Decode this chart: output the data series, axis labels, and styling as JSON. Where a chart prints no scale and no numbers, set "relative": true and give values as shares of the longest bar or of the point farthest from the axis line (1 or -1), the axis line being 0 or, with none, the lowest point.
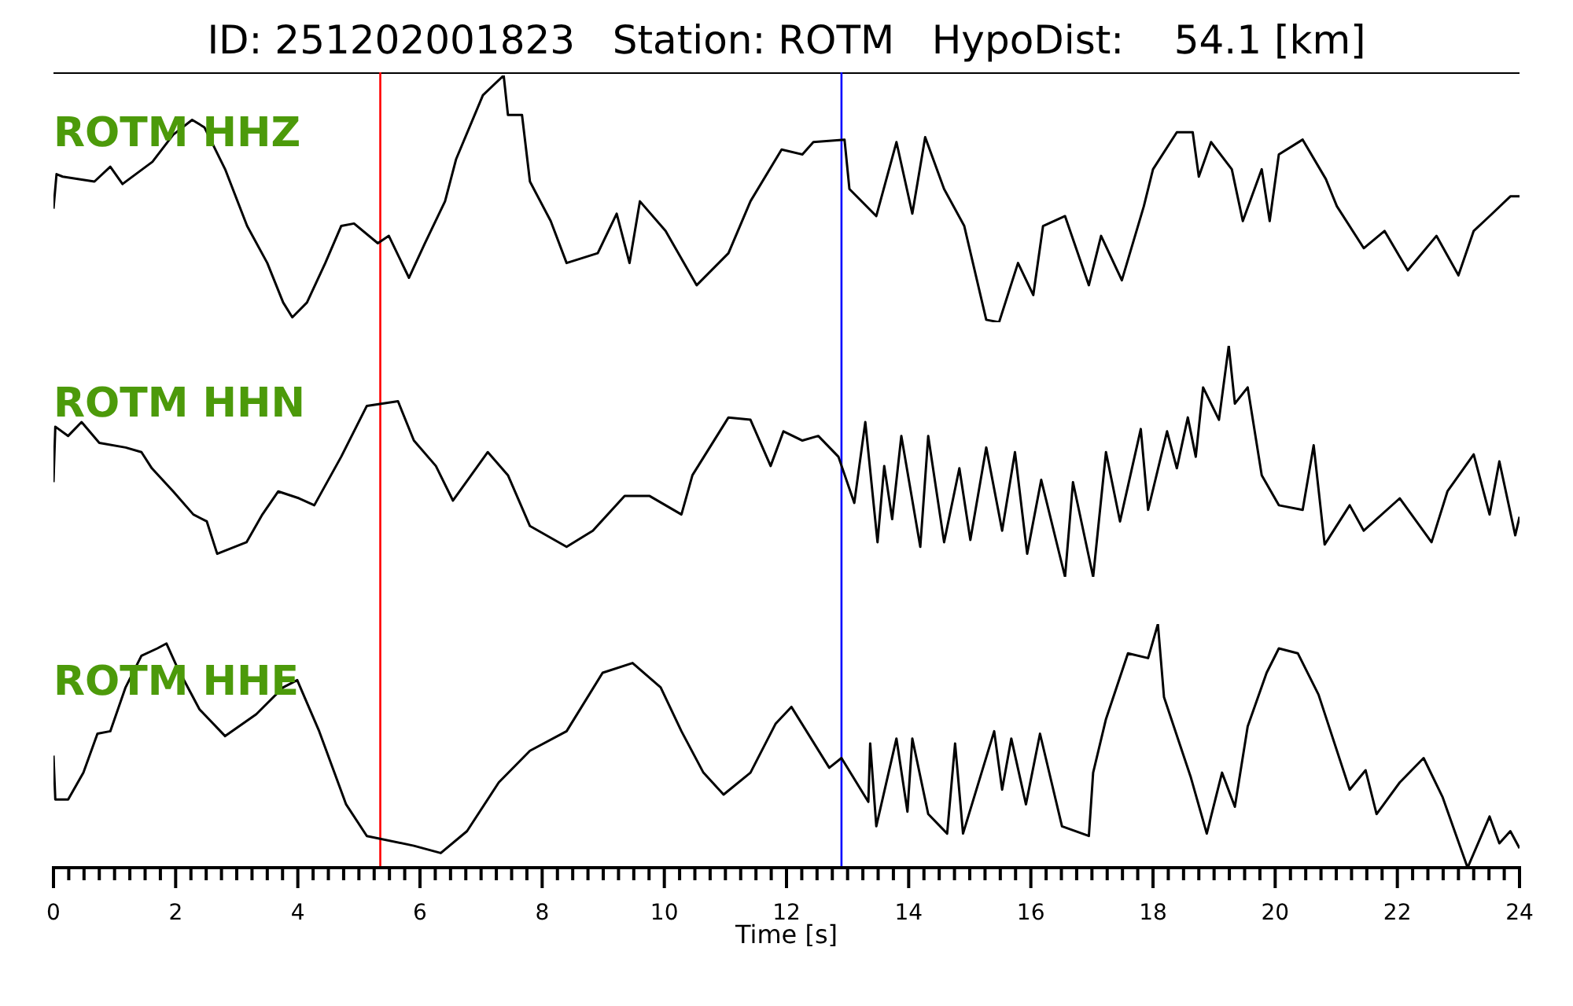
{
  "chart_data": [
    {
      "type": "line",
      "title": "ID: 251202001823   Station: ROTM   HypoDist:    54.1 [km]",
      "relative": true,
      "xlim": [
        0,
        24
      ],
      "tick_labels": false,
      "x": [
        0,
        0.05,
        0.15,
        0.67,
        0.93,
        1.13,
        1.62,
        1.96,
        2.27,
        2.47,
        2.81,
        3.17,
        3.5,
        3.76,
        3.91,
        4.15,
        4.45,
        4.71,
        4.92,
        5.31,
        5.49,
        5.82,
        6.08,
        6.41,
        6.59,
        7.03,
        7.37,
        7.44,
        7.67,
        7.8,
        8.14,
        8.4,
        8.91,
        9.22,
        9.43,
        9.6,
        10.02,
        10.53,
        11.05,
        11.41,
        11.92,
        12.26,
        12.44,
        12.95,
        13.03,
        13.47,
        13.8,
        14.06,
        14.27,
        14.58,
        14.91,
        15.27,
        15.48,
        15.79,
        16.04,
        16.2,
        16.56,
        16.95,
        17.15,
        17.49,
        17.85,
        18.0,
        18.39,
        18.65,
        18.75,
        18.95,
        19.29,
        19.47,
        19.78,
        19.91,
        20.06,
        20.45,
        20.83,
        21.01,
        21.45,
        21.79,
        22.17,
        22.64,
        23.0,
        23.25,
        23.51,
        23.85,
        24.0
      ],
      "series": [
        {
          "name": "ROTM HHZ",
          "color": "#000000",
          "values": [
            0.46,
            0.6,
            0.59,
            0.57,
            0.63,
            0.56,
            0.65,
            0.76,
            0.82,
            0.79,
            0.62,
            0.39,
            0.24,
            0.08,
            0.02,
            0.08,
            0.24,
            0.39,
            0.4,
            0.32,
            0.35,
            0.18,
            0.32,
            0.49,
            0.66,
            0.92,
            1.0,
            0.84,
            0.84,
            0.57,
            0.41,
            0.24,
            0.28,
            0.44,
            0.24,
            0.49,
            0.37,
            0.15,
            0.28,
            0.49,
            0.7,
            0.68,
            0.73,
            0.74,
            0.54,
            0.43,
            0.73,
            0.44,
            0.75,
            0.54,
            0.39,
            0.01,
            0.0,
            0.24,
            0.11,
            0.39,
            0.43,
            0.15,
            0.35,
            0.17,
            0.47,
            0.62,
            0.77,
            0.77,
            0.59,
            0.73,
            0.62,
            0.41,
            0.62,
            0.41,
            0.68,
            0.74,
            0.58,
            0.47,
            0.3,
            0.37,
            0.21,
            0.35,
            0.19,
            0.37,
            0.43,
            0.51,
            0.51
          ]
        }
      ],
      "ref_lines": [
        {
          "axis": "x",
          "value": 5.35,
          "color": "#ff0000"
        },
        {
          "axis": "x",
          "value": 12.9,
          "color": "#0000ff"
        }
      ]
    },
    {
      "type": "line",
      "relative": true,
      "xlim": [
        0,
        24
      ],
      "tick_labels": false,
      "x": [
        0,
        0.03,
        0.24,
        0.46,
        0.75,
        1.18,
        1.44,
        1.61,
        1.96,
        2.29,
        2.51,
        2.68,
        3.16,
        3.42,
        3.68,
        4.02,
        4.27,
        4.71,
        5.13,
        5.64,
        5.9,
        6.26,
        6.54,
        7.11,
        7.44,
        7.8,
        8.4,
        8.83,
        9.35,
        9.76,
        10.28,
        10.46,
        11.05,
        11.41,
        11.74,
        11.95,
        12.26,
        12.52,
        12.85,
        13.11,
        13.29,
        13.49,
        13.6,
        13.73,
        13.88,
        14.19,
        14.32,
        14.58,
        14.83,
        15.01,
        15.27,
        15.53,
        15.74,
        15.94,
        16.17,
        16.56,
        16.69,
        17.02,
        17.23,
        17.46,
        17.8,
        17.92,
        18.23,
        18.39,
        18.57,
        18.7,
        18.82,
        19.08,
        19.24,
        19.34,
        19.55,
        19.78,
        20.06,
        20.45,
        20.63,
        20.81,
        21.22,
        21.45,
        22.04,
        22.56,
        22.82,
        23.25,
        23.51,
        23.67,
        23.93,
        24.0
      ],
      "series": [
        {
          "name": "ROTM HHN",
          "color": "#000000",
          "values": [
            0.41,
            0.65,
            0.61,
            0.67,
            0.58,
            0.56,
            0.54,
            0.47,
            0.37,
            0.27,
            0.24,
            0.1,
            0.15,
            0.27,
            0.37,
            0.34,
            0.31,
            0.52,
            0.74,
            0.76,
            0.59,
            0.48,
            0.33,
            0.54,
            0.44,
            0.22,
            0.13,
            0.2,
            0.35,
            0.35,
            0.27,
            0.44,
            0.69,
            0.68,
            0.48,
            0.63,
            0.59,
            0.61,
            0.52,
            0.32,
            0.67,
            0.15,
            0.48,
            0.25,
            0.61,
            0.13,
            0.61,
            0.15,
            0.47,
            0.16,
            0.56,
            0.2,
            0.54,
            0.1,
            0.42,
            0.0,
            0.41,
            0.0,
            0.54,
            0.24,
            0.64,
            0.29,
            0.63,
            0.47,
            0.69,
            0.52,
            0.82,
            0.68,
            1.0,
            0.75,
            0.82,
            0.44,
            0.31,
            0.29,
            0.57,
            0.14,
            0.31,
            0.2,
            0.34,
            0.15,
            0.37,
            0.53,
            0.27,
            0.5,
            0.18,
            0.26
          ]
        }
      ],
      "ref_lines": [
        {
          "axis": "x",
          "value": 5.35,
          "color": "#ff0000"
        },
        {
          "axis": "x",
          "value": 12.9,
          "color": "#0000ff"
        }
      ]
    },
    {
      "type": "line",
      "relative": true,
      "xlim": [
        0,
        24
      ],
      "tick_labels": "x",
      "xlabel": "Time [s]",
      "xticks": [
        0,
        {
          "value": 0.25,
          "label": null
        },
        {
          "value": 0.5,
          "label": null
        },
        {
          "value": 0.75,
          "label": null
        },
        {
          "value": 1,
          "label": null
        },
        {
          "value": 1.25,
          "label": null
        },
        {
          "value": 1.5,
          "label": null
        },
        {
          "value": 1.75,
          "label": null
        },
        2,
        {
          "value": 2.25,
          "label": null
        },
        {
          "value": 2.5,
          "label": null
        },
        {
          "value": 2.75,
          "label": null
        },
        {
          "value": 3,
          "label": null
        },
        {
          "value": 3.25,
          "label": null
        },
        {
          "value": 3.5,
          "label": null
        },
        {
          "value": 3.75,
          "label": null
        },
        4,
        {
          "value": 4.25,
          "label": null
        },
        {
          "value": 4.5,
          "label": null
        },
        {
          "value": 4.75,
          "label": null
        },
        {
          "value": 5,
          "label": null
        },
        {
          "value": 5.25,
          "label": null
        },
        {
          "value": 5.5,
          "label": null
        },
        {
          "value": 5.75,
          "label": null
        },
        6,
        {
          "value": 6.25,
          "label": null
        },
        {
          "value": 6.5,
          "label": null
        },
        {
          "value": 6.75,
          "label": null
        },
        {
          "value": 7,
          "label": null
        },
        {
          "value": 7.25,
          "label": null
        },
        {
          "value": 7.5,
          "label": null
        },
        {
          "value": 7.75,
          "label": null
        },
        8,
        {
          "value": 8.25,
          "label": null
        },
        {
          "value": 8.5,
          "label": null
        },
        {
          "value": 8.75,
          "label": null
        },
        {
          "value": 9,
          "label": null
        },
        {
          "value": 9.25,
          "label": null
        },
        {
          "value": 9.5,
          "label": null
        },
        {
          "value": 9.75,
          "label": null
        },
        10,
        {
          "value": 10.25,
          "label": null
        },
        {
          "value": 10.5,
          "label": null
        },
        {
          "value": 10.75,
          "label": null
        },
        {
          "value": 11,
          "label": null
        },
        {
          "value": 11.25,
          "label": null
        },
        {
          "value": 11.5,
          "label": null
        },
        {
          "value": 11.75,
          "label": null
        },
        12,
        {
          "value": 12.25,
          "label": null
        },
        {
          "value": 12.5,
          "label": null
        },
        {
          "value": 12.75,
          "label": null
        },
        {
          "value": 13,
          "label": null
        },
        {
          "value": 13.25,
          "label": null
        },
        {
          "value": 13.5,
          "label": null
        },
        {
          "value": 13.75,
          "label": null
        },
        14,
        {
          "value": 14.25,
          "label": null
        },
        {
          "value": 14.5,
          "label": null
        },
        {
          "value": 14.75,
          "label": null
        },
        {
          "value": 15,
          "label": null
        },
        {
          "value": 15.25,
          "label": null
        },
        {
          "value": 15.5,
          "label": null
        },
        {
          "value": 15.75,
          "label": null
        },
        16,
        {
          "value": 16.25,
          "label": null
        },
        {
          "value": 16.5,
          "label": null
        },
        {
          "value": 16.75,
          "label": null
        },
        {
          "value": 17,
          "label": null
        },
        {
          "value": 17.25,
          "label": null
        },
        {
          "value": 17.5,
          "label": null
        },
        {
          "value": 17.75,
          "label": null
        },
        18,
        {
          "value": 18.25,
          "label": null
        },
        {
          "value": 18.5,
          "label": null
        },
        {
          "value": 18.75,
          "label": null
        },
        {
          "value": 19,
          "label": null
        },
        {
          "value": 19.25,
          "label": null
        },
        {
          "value": 19.5,
          "label": null
        },
        {
          "value": 19.75,
          "label": null
        },
        20,
        {
          "value": 20.25,
          "label": null
        },
        {
          "value": 20.5,
          "label": null
        },
        {
          "value": 20.75,
          "label": null
        },
        {
          "value": 21,
          "label": null
        },
        {
          "value": 21.25,
          "label": null
        },
        {
          "value": 21.5,
          "label": null
        },
        {
          "value": 21.75,
          "label": null
        },
        22,
        {
          "value": 22.25,
          "label": null
        },
        {
          "value": 22.5,
          "label": null
        },
        {
          "value": 22.75,
          "label": null
        },
        {
          "value": 23,
          "label": null
        },
        {
          "value": 23.25,
          "label": null
        },
        {
          "value": 23.5,
          "label": null
        },
        {
          "value": 23.75,
          "label": null
        },
        24
      ],
      "x": [
        0,
        0.03,
        0.24,
        0.49,
        0.72,
        0.93,
        1.18,
        1.44,
        1.7,
        1.85,
        2.03,
        2.39,
        2.81,
        3.32,
        3.76,
        3.99,
        4.35,
        4.79,
        5.13,
        5.9,
        6.34,
        6.77,
        7.29,
        7.8,
        8.4,
        8.99,
        9.48,
        9.94,
        10.28,
        10.64,
        10.97,
        11.41,
        11.82,
        12.08,
        12.7,
        12.9,
        13.34,
        13.37,
        13.47,
        13.8,
        13.98,
        14.06,
        14.32,
        14.63,
        14.76,
        14.89,
        15.4,
        15.53,
        15.68,
        15.92,
        16.15,
        16.51,
        16.95,
        17.02,
        17.23,
        17.59,
        17.92,
        18.08,
        18.18,
        18.62,
        18.88,
        19.13,
        19.34,
        19.55,
        19.86,
        20.06,
        20.37,
        20.71,
        21.22,
        21.48,
        21.66,
        22.04,
        22.43,
        22.74,
        23.15,
        23.51,
        23.67,
        23.85,
        24.0
      ],
      "series": [
        {
          "name": "ROTM HHE",
          "color": "#000000",
          "values": [
            0.46,
            0.28,
            0.28,
            0.39,
            0.55,
            0.56,
            0.74,
            0.87,
            0.9,
            0.92,
            0.82,
            0.65,
            0.54,
            0.63,
            0.74,
            0.77,
            0.56,
            0.26,
            0.13,
            0.09,
            0.06,
            0.15,
            0.35,
            0.48,
            0.56,
            0.8,
            0.84,
            0.74,
            0.56,
            0.39,
            0.3,
            0.39,
            0.59,
            0.66,
            0.41,
            0.45,
            0.27,
            0.51,
            0.17,
            0.53,
            0.23,
            0.53,
            0.22,
            0.14,
            0.51,
            0.14,
            0.56,
            0.32,
            0.53,
            0.26,
            0.55,
            0.17,
            0.13,
            0.39,
            0.61,
            0.88,
            0.86,
            1.0,
            0.7,
            0.37,
            0.14,
            0.39,
            0.25,
            0.58,
            0.8,
            0.9,
            0.88,
            0.71,
            0.32,
            0.4,
            0.22,
            0.35,
            0.45,
            0.29,
            0.0,
            0.21,
            0.1,
            0.15,
            0.08
          ]
        }
      ],
      "ref_lines": [
        {
          "axis": "x",
          "value": 5.35,
          "color": "#ff0000"
        },
        {
          "axis": "x",
          "value": 12.9,
          "color": "#0000ff"
        }
      ]
    }
  ]
}
